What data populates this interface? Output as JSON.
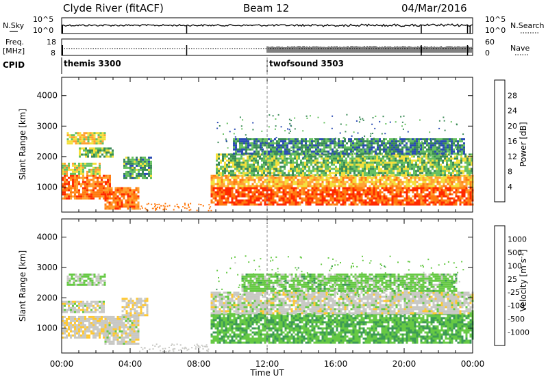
{
  "header": {
    "station": "Clyde River (fitACF)",
    "beam": "Beam 12",
    "date": "04/Mar/2016"
  },
  "aux_labels": {
    "nsky": "N.Sky",
    "nsearch": "N.Search",
    "freq": "Freq.",
    "freq_unit": "[MHz]",
    "nave": "Nave",
    "cpid": "CPID"
  },
  "aux_ticks": {
    "noise_top": "10^5",
    "noise_bottom": "10^0",
    "freq_top": "18",
    "freq_bottom": "8",
    "nave_top": "60",
    "nave_bottom": "0"
  },
  "cpid_modes": [
    {
      "label": "themis 3300",
      "start_hour": 0
    },
    {
      "label": "twofsound 3503",
      "start_hour": 12.0
    }
  ],
  "axes": {
    "xlabel": "Time UT",
    "ylabel": "Slant Range [km]",
    "x_ticks": [
      "00:00",
      "04:00",
      "08:00",
      "12:00",
      "16:00",
      "20:00",
      "00:00"
    ],
    "y_ticks": [
      "1000",
      "2000",
      "3000",
      "4000"
    ]
  },
  "colorbars": {
    "power": {
      "label": "Power [dB]",
      "ticks": [
        "4",
        "8",
        "12",
        "16",
        "20",
        "24",
        "28"
      ],
      "colors": [
        "#0000ff",
        "#2a4bb3",
        "#3a8a56",
        "#66c060",
        "#f4e03a",
        "#ffa030",
        "#ff7a10",
        "#ff2a00"
      ]
    },
    "velocity": {
      "label": "Velocity [m s",
      "label_sup": "-1",
      "label_end": "]",
      "ticks": [
        "1000",
        "500",
        "100",
        "25",
        "-25",
        "-100",
        "-500",
        "-1000"
      ],
      "colors": [
        "#1a3cb0",
        "#2b7a40",
        "#3c9a55",
        "#66c944",
        "#c8c8c4",
        "#ffc830",
        "#ffa000",
        "#ff7000",
        "#ff0000"
      ]
    }
  },
  "chart_data": [
    {
      "type": "heatmap",
      "title": "Power",
      "xlabel": "Time UT",
      "ylabel": "Slant Range [km]",
      "xlim": [
        0,
        24
      ],
      "ylim": [
        180,
        4600
      ],
      "colorbar": "Power [dB]",
      "value_range": [
        0,
        32
      ],
      "bands": [
        {
          "t0": 0.0,
          "t1": 2.8,
          "r0": 600,
          "r1": 1400,
          "value": 26
        },
        {
          "t0": 0.0,
          "t1": 2.2,
          "r0": 1400,
          "r1": 1800,
          "value": 17
        },
        {
          "t0": 0.3,
          "t1": 2.5,
          "r0": 2450,
          "r1": 2800,
          "value": 18
        },
        {
          "t0": 1.0,
          "t1": 3.0,
          "r0": 2000,
          "r1": 2300,
          "value": 14
        },
        {
          "t0": 2.5,
          "t1": 4.5,
          "r0": 300,
          "r1": 1000,
          "value": 25
        },
        {
          "t0": 3.6,
          "t1": 5.2,
          "r0": 1300,
          "r1": 2000,
          "value": 12
        },
        {
          "t0": 8.7,
          "t1": 24.0,
          "r0": 400,
          "r1": 1000,
          "value": 28
        },
        {
          "t0": 8.7,
          "t1": 24.0,
          "r0": 1000,
          "r1": 1400,
          "value": 21
        },
        {
          "t0": 9.0,
          "t1": 24.0,
          "r0": 1400,
          "r1": 2100,
          "value": 14
        },
        {
          "t0": 10.0,
          "t1": 23.5,
          "r0": 2100,
          "r1": 2600,
          "value": 10
        }
      ]
    },
    {
      "type": "heatmap",
      "title": "Velocity",
      "xlabel": "Time UT",
      "ylabel": "Slant Range [km]",
      "xlim": [
        0,
        24
      ],
      "ylim": [
        180,
        4600
      ],
      "colorbar": "Velocity [m s-1]",
      "value_range": [
        -1000,
        1000
      ],
      "bands": [
        {
          "t0": 0.0,
          "t1": 2.8,
          "r0": 700,
          "r1": 1400,
          "value": 80
        },
        {
          "t0": 0.0,
          "t1": 2.5,
          "r0": 1500,
          "r1": 1900,
          "value": 0
        },
        {
          "t0": 0.3,
          "t1": 2.5,
          "r0": 2450,
          "r1": 2800,
          "value": -150
        },
        {
          "t0": 2.5,
          "t1": 4.5,
          "r0": 500,
          "r1": 1400,
          "value": 0
        },
        {
          "t0": 3.5,
          "t1": 5.0,
          "r0": 1400,
          "r1": 2000,
          "value": 80
        },
        {
          "t0": 8.7,
          "t1": 24.0,
          "r0": 500,
          "r1": 1500,
          "value": -300
        },
        {
          "t0": 8.7,
          "t1": 24.0,
          "r0": 1500,
          "r1": 2200,
          "value": 0
        },
        {
          "t0": 10.5,
          "t1": 23.0,
          "r0": 2200,
          "r1": 2800,
          "value": -200
        }
      ]
    }
  ]
}
